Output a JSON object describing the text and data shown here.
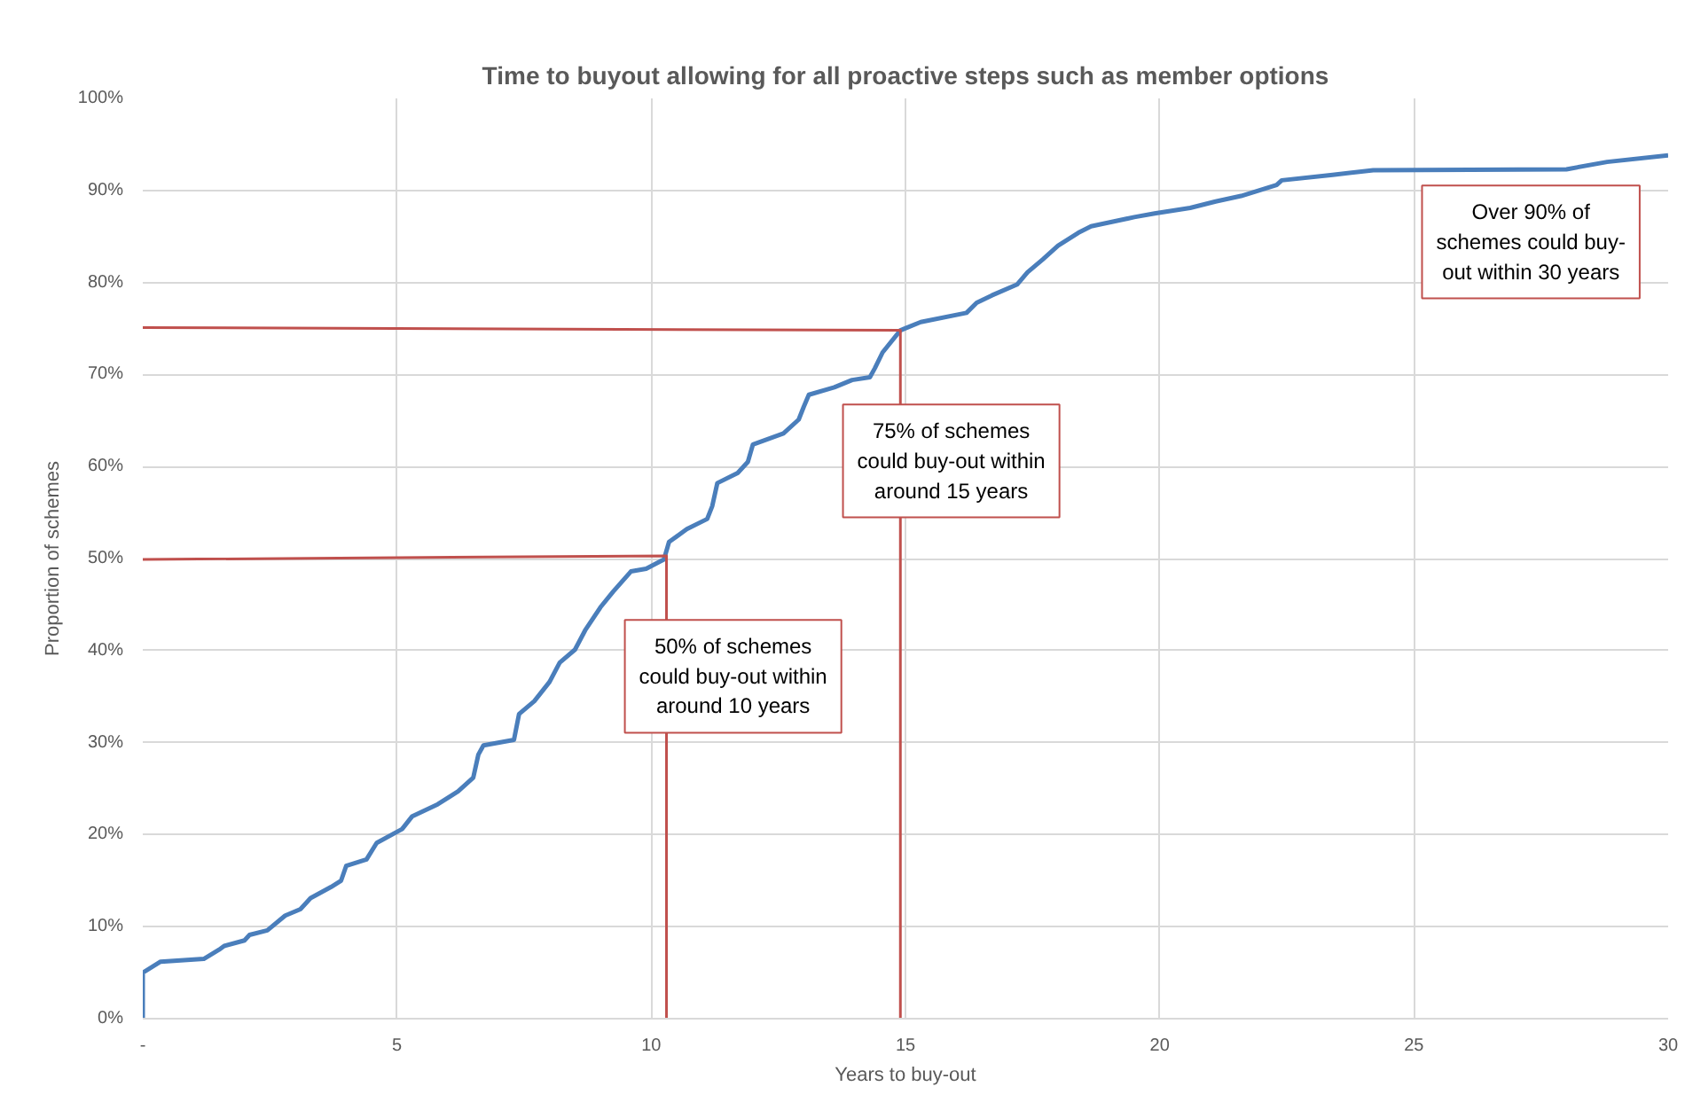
{
  "chart_data": {
    "type": "line",
    "title": "Time to buyout allowing for all proactive steps such as member options",
    "xlabel": "Years to buy-out",
    "ylabel": "Proportion of schemes",
    "x": [
      0,
      0,
      0.35,
      1.2,
      1.5,
      1.6,
      2.0,
      2.1,
      2.45,
      2.8,
      3.1,
      3.3,
      3.7,
      3.9,
      4.0,
      4.4,
      4.6,
      5.1,
      5.3,
      5.8,
      6.2,
      6.5,
      6.6,
      6.7,
      7.3,
      7.4,
      7.7,
      8.0,
      8.2,
      8.5,
      8.7,
      9.0,
      9.25,
      9.6,
      9.9,
      10.25,
      10.35,
      10.7,
      11.1,
      11.2,
      11.3,
      11.7,
      11.9,
      12.0,
      12.6,
      12.9,
      13.0,
      13.1,
      13.6,
      13.95,
      14.3,
      14.4,
      14.55,
      14.9,
      15.3,
      16.2,
      16.4,
      16.7,
      17.2,
      17.4,
      17.7,
      18.0,
      18.4,
      18.65,
      19.5,
      19.9,
      20.6,
      21.1,
      21.6,
      22.3,
      22.4,
      23.4,
      24.2,
      28.0,
      28.8,
      30
    ],
    "series": [
      {
        "color": "#4a7ebb",
        "values": [
          0,
          5,
          6.2,
          6.5,
          7.5,
          7.9,
          8.5,
          9.1,
          9.6,
          11.2,
          11.9,
          13.1,
          14.3,
          15.0,
          16.6,
          17.3,
          19.1,
          20.6,
          22.0,
          23.3,
          24.7,
          26.2,
          28.7,
          29.7,
          30.3,
          33.1,
          34.5,
          36.6,
          38.7,
          40.1,
          42.2,
          44.7,
          46.4,
          48.6,
          48.9,
          49.9,
          51.8,
          53.2,
          54.3,
          55.7,
          58.2,
          59.3,
          60.5,
          62.4,
          63.6,
          65.1,
          66.5,
          67.8,
          68.6,
          69.4,
          69.7,
          70.7,
          72.4,
          74.8,
          75.7,
          76.7,
          77.8,
          78.6,
          79.8,
          81.1,
          82.5,
          84.0,
          85.4,
          86.1,
          87.1,
          87.5,
          88.1,
          88.8,
          89.4,
          90.6,
          91.1,
          91.7,
          92.2,
          92.3,
          93.1,
          93.8
        ]
      },
      {
        "color": "#c0504d",
        "x": [
          0,
          14.9,
          14.9
        ],
        "values": [
          75.1,
          74.8,
          0
        ]
      },
      {
        "color": "#c0504d",
        "x": [
          0,
          10.3,
          10.3
        ],
        "values": [
          49.9,
          50.3,
          0
        ]
      }
    ],
    "annotations": [
      "50% of schemes\ncould buy-out within\naround 10 years",
      "75% of schemes\ncould buy-out within\naround 15 years",
      "Over 90% of\nschemes could buy-\nout within 30 years"
    ],
    "xlim": [
      0,
      30
    ],
    "ylim": [
      0,
      100
    ],
    "xticks": [
      {
        "value": 0,
        "label": "-"
      },
      5,
      10,
      15,
      20,
      25,
      30
    ],
    "yticks": [
      {
        "value": 0,
        "label": "0%"
      },
      {
        "value": 10,
        "label": "10%"
      },
      {
        "value": 20,
        "label": "20%"
      },
      {
        "value": 30,
        "label": "30%"
      },
      {
        "value": 40,
        "label": "40%"
      },
      {
        "value": 50,
        "label": "50%"
      },
      {
        "value": 60,
        "label": "60%"
      },
      {
        "value": 70,
        "label": "70%"
      },
      {
        "value": 80,
        "label": "80%"
      },
      {
        "value": 90,
        "label": "90%"
      },
      {
        "value": 100,
        "label": "100%"
      }
    ],
    "grid": true,
    "marker": "none",
    "line_style": "solid"
  }
}
